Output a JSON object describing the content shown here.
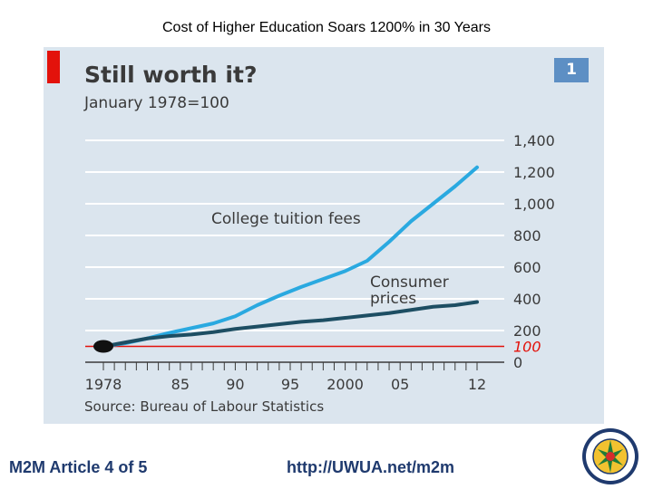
{
  "slide": {
    "title": "Cost of Higher Education Soars 1200% in 30 Years",
    "footer_left": "M2M Article 4 of 5",
    "footer_right": "http://UWUA.net/m2m"
  },
  "chart_panel": {
    "number": "1",
    "source": "Source: Bureau of Labour Statistics"
  },
  "logo": {
    "text": "UTILITY WORKERS UNION OF AMERICA AFL-CIO"
  },
  "colors": {
    "tuition": "#2aa9e0",
    "consumer": "#1d4e63",
    "baseline": "#e3120b",
    "grid": "#ffffff",
    "axis_text": "#3a3a3a"
  },
  "chart_data": {
    "type": "line",
    "title": "Still worth it?",
    "subtitle": "January 1978=100",
    "xlabel": "",
    "ylabel": "",
    "x_ticks": [
      1978,
      1985,
      1990,
      1995,
      2000,
      2005,
      2012
    ],
    "x_tick_labels": [
      "1978",
      "85",
      "90",
      "95",
      "2000",
      "05",
      "12"
    ],
    "xlim": [
      1978,
      2012
    ],
    "y_ticks": [
      0,
      200,
      400,
      600,
      800,
      1000,
      1200,
      1400
    ],
    "y_tick_labels": [
      "0",
      "200",
      "400",
      "600",
      "800",
      "1,000",
      "1,200",
      "1,400"
    ],
    "ylim": [
      0,
      1400
    ],
    "y_axis_side": "right",
    "grid": true,
    "reference_line": {
      "value": 100,
      "label": "100"
    },
    "start_marker": {
      "x": 1978,
      "y": 100
    },
    "series": [
      {
        "name": "College tuition fees",
        "x": [
          1978,
          1980,
          1982,
          1984,
          1986,
          1988,
          1990,
          1992,
          1994,
          1996,
          1998,
          2000,
          2002,
          2004,
          2006,
          2008,
          2010,
          2012
        ],
        "values": [
          100,
          120,
          150,
          185,
          215,
          245,
          290,
          360,
          420,
          475,
          525,
          575,
          640,
          760,
          890,
          1000,
          1110,
          1230
        ]
      },
      {
        "name": "Consumer prices",
        "x": [
          1978,
          1980,
          1982,
          1984,
          1986,
          1988,
          1990,
          1992,
          1994,
          1996,
          1998,
          2000,
          2002,
          2004,
          2006,
          2008,
          2010,
          2012
        ],
        "values": [
          100,
          125,
          150,
          165,
          175,
          190,
          210,
          225,
          240,
          255,
          265,
          280,
          295,
          310,
          330,
          350,
          360,
          380
        ]
      }
    ]
  }
}
